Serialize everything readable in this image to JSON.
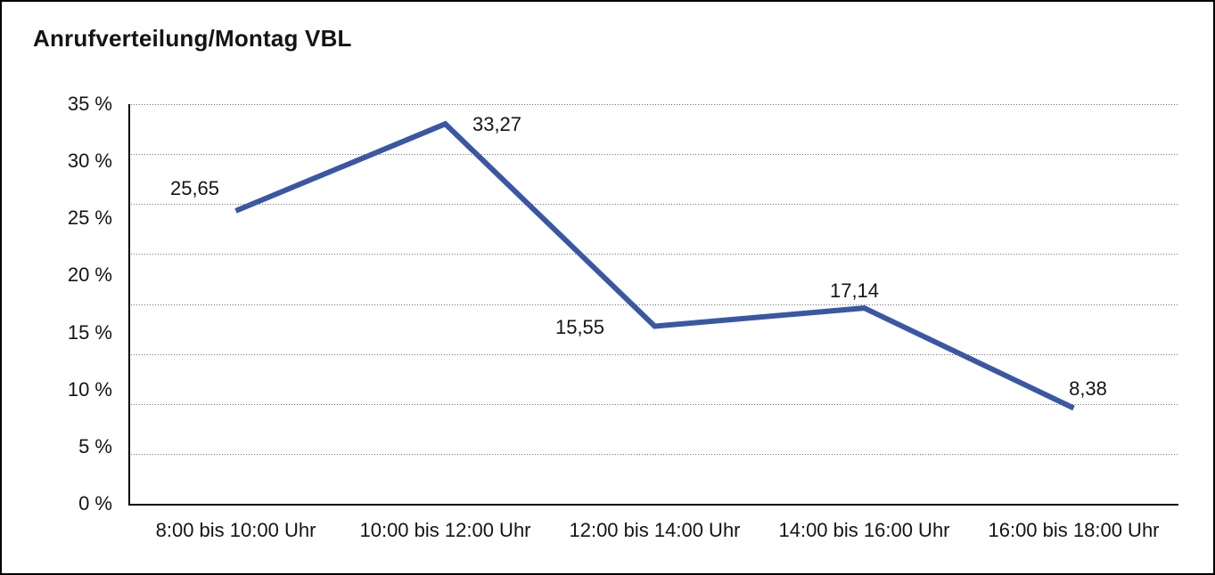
{
  "page": {
    "background_color": "#ffffff",
    "frame_color": "#000000"
  },
  "chart_data": {
    "type": "line",
    "title": "Anrufverteilung/Montag VBL",
    "categories": [
      "8:00 bis 10:00 Uhr",
      "10:00 bis 12:00 Uhr",
      "12:00 bis 14:00 Uhr",
      "14:00 bis 16:00 Uhr",
      "16:00 bis 18:00 Uhr"
    ],
    "series": [
      {
        "values": [
          25.65,
          33.27,
          15.55,
          17.14,
          8.38
        ],
        "point_labels": [
          "25,65",
          "33,27",
          "15,55",
          "17,14",
          "8,38"
        ],
        "color": "#3A57A4"
      }
    ],
    "xlabel": "",
    "ylabel": "",
    "ylim": [
      0,
      35
    ],
    "y_tick_labels": [
      "0 %",
      "5 %",
      "10 %",
      "15 %",
      "20 %",
      "25 %",
      "30 %",
      "35 %"
    ],
    "grid": {
      "orientation": "horizontal",
      "style": "dotted",
      "divisions": 8,
      "color": "#6f6f6f"
    },
    "legend": "none",
    "markers": "none",
    "text_color": "#141414"
  }
}
